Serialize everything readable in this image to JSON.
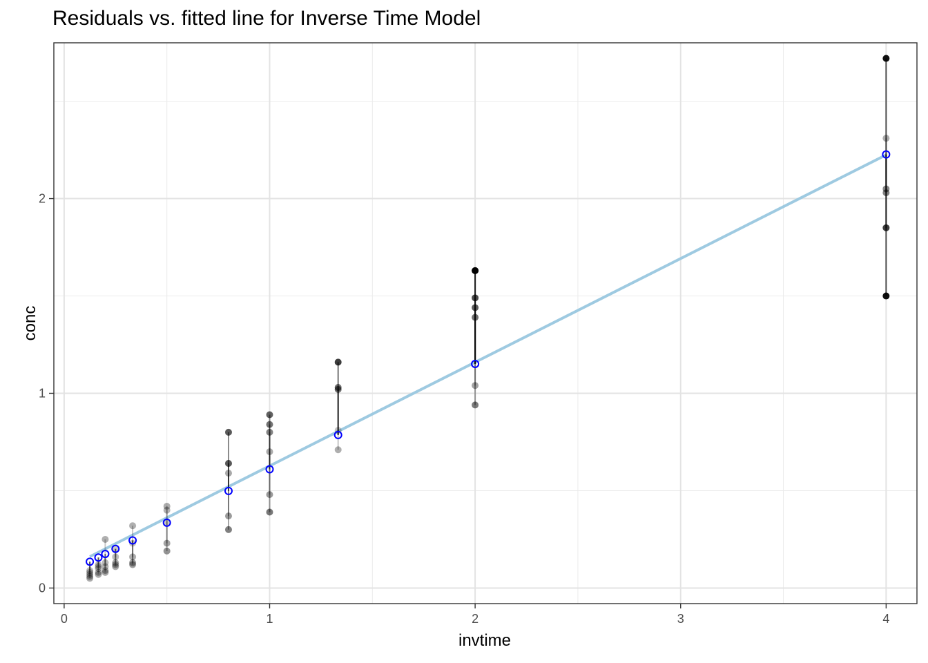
{
  "chart_data": {
    "type": "scatter",
    "title": "Residuals vs. fitted line for Inverse Time Model",
    "xlabel": "invtime",
    "ylabel": "conc",
    "xlim": [
      -0.05,
      4.15
    ],
    "ylim": [
      -0.08,
      2.8
    ],
    "x_ticks": [
      0,
      1,
      2,
      3,
      4
    ],
    "x_tick_labels": [
      "0",
      "1",
      "2",
      "3",
      "4"
    ],
    "y_ticks": [
      0,
      1,
      2
    ],
    "y_tick_labels": [
      "0",
      "1",
      "2"
    ],
    "x_minor_ticks": [
      0.5,
      1.5,
      2.5,
      3.5
    ],
    "y_minor_ticks": [
      0.5,
      1.5,
      2.5
    ],
    "grid": true,
    "fit_line": {
      "intercept": 0.0946,
      "slope": 0.5325,
      "x_range": [
        0.125,
        4
      ],
      "color": "#9ecae1"
    },
    "fitted_color": "#0000ff",
    "groups": [
      {
        "x": 0.125,
        "fitted": 0.1352,
        "observed": [
          0.05,
          0.06,
          0.07,
          0.08,
          0.09
        ]
      },
      {
        "x": 0.1667,
        "fitted": 0.1568,
        "observed": [
          0.07,
          0.08,
          0.1,
          0.11,
          0.12
        ]
      },
      {
        "x": 0.2,
        "fitted": 0.1751,
        "observed": [
          0.08,
          0.09,
          0.11,
          0.13,
          0.25
        ]
      },
      {
        "x": 0.25,
        "fitted": 0.2012,
        "observed": [
          0.11,
          0.12,
          0.13,
          0.16,
          0.2
        ]
      },
      {
        "x": 0.3333,
        "fitted": 0.2446,
        "observed": [
          0.12,
          0.13,
          0.16,
          0.23,
          0.32
        ]
      },
      {
        "x": 0.5,
        "fitted": 0.3355,
        "observed": [
          0.19,
          0.23,
          0.34,
          0.4,
          0.42
        ]
      },
      {
        "x": 0.8,
        "fitted": 0.4986,
        "observed": [
          0.3,
          0.37,
          0.59,
          0.64,
          0.64,
          0.8
        ]
      },
      {
        "x": 1.0,
        "fitted": 0.6098,
        "observed": [
          0.39,
          0.48,
          0.7,
          0.8,
          0.84,
          0.89
        ]
      },
      {
        "x": 1.3333,
        "fitted": 0.7858,
        "observed": [
          0.71,
          0.81,
          1.02,
          1.03,
          1.16
        ]
      },
      {
        "x": 2.0,
        "fitted": 1.1508,
        "observed": [
          0.94,
          1.04,
          1.39,
          1.44,
          1.49,
          1.63,
          1.63
        ]
      },
      {
        "x": 4.0,
        "fitted": 2.2268,
        "observed": [
          1.5,
          1.85,
          2.03,
          2.05,
          2.31,
          2.72
        ]
      }
    ]
  }
}
